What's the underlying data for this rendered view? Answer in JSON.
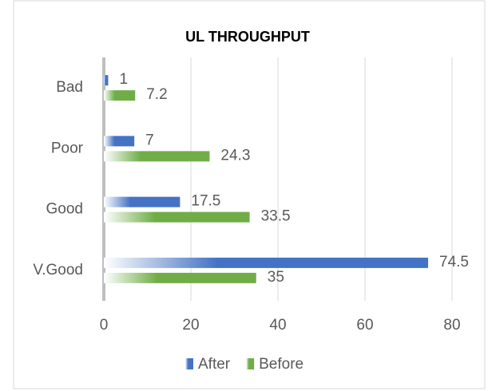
{
  "chart_data": {
    "type": "bar",
    "orientation": "horizontal",
    "title": "UL THROUGHPUT",
    "categories": [
      "Bad",
      "Poor",
      "Good",
      "V.Good"
    ],
    "series": [
      {
        "name": "After",
        "color": "#4472c4",
        "values": [
          1,
          7,
          17.5,
          74.5
        ]
      },
      {
        "name": "Before",
        "color": "#70ad47",
        "values": [
          7.2,
          24.3,
          33.5,
          35
        ]
      }
    ],
    "xlim": [
      0,
      80
    ],
    "xticks": [
      0,
      20,
      40,
      60,
      80
    ],
    "grid": true,
    "legend": "bottom"
  }
}
